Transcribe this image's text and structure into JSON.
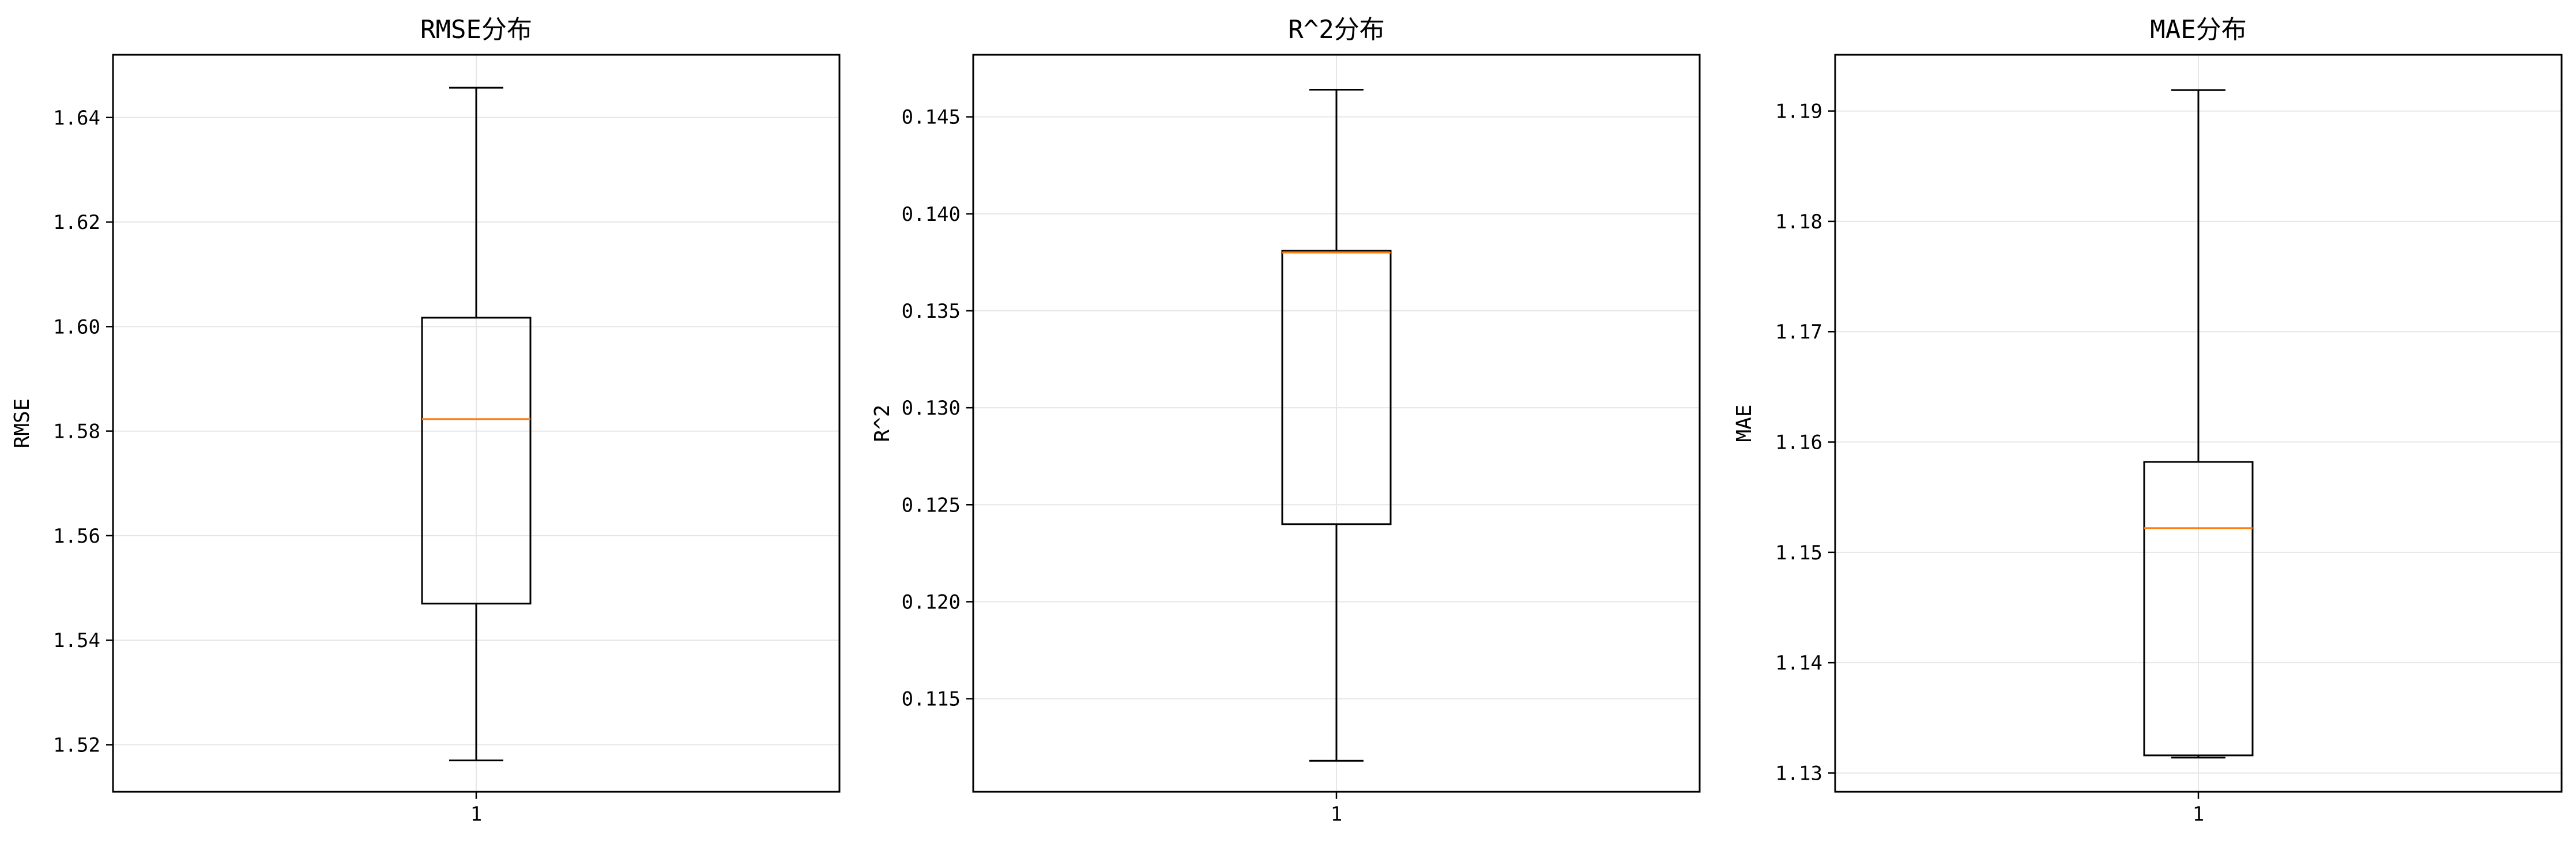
{
  "chart_data": [
    {
      "type": "box",
      "title": "RMSE分布",
      "ylabel": "RMSE",
      "categories": [
        "1"
      ],
      "ylim": [
        1.511,
        1.652
      ],
      "yticks": [
        "1.52",
        "1.54",
        "1.56",
        "1.58",
        "1.60",
        "1.62",
        "1.64"
      ],
      "grid": true,
      "box": {
        "whisker_low": 1.517,
        "q1": 1.547,
        "median": 1.5823,
        "q3": 1.6017,
        "whisker_high": 1.6457
      }
    },
    {
      "type": "box",
      "title": "R^2分布",
      "ylabel": "R^2",
      "categories": [
        "1"
      ],
      "ylim": [
        0.1102,
        0.1482
      ],
      "yticks": [
        "0.115",
        "0.120",
        "0.125",
        "0.130",
        "0.135",
        "0.140",
        "0.145"
      ],
      "grid": true,
      "box": {
        "whisker_low": 0.1118,
        "q1": 0.124,
        "median": 0.138,
        "q3": 0.1381,
        "whisker_high": 0.1464
      }
    },
    {
      "type": "box",
      "title": "MAE分布",
      "ylabel": "MAE",
      "categories": [
        "1"
      ],
      "ylim": [
        1.1283,
        1.1951
      ],
      "yticks": [
        "1.13",
        "1.14",
        "1.15",
        "1.16",
        "1.17",
        "1.18",
        "1.19"
      ],
      "grid": true,
      "box": {
        "whisker_low": 1.1314,
        "q1": 1.1316,
        "median": 1.1522,
        "q3": 1.1582,
        "whisker_high": 1.1919
      }
    }
  ],
  "colors": {
    "median": "#ff7f0e",
    "box": "#000000",
    "grid": "#e6e6e6"
  }
}
